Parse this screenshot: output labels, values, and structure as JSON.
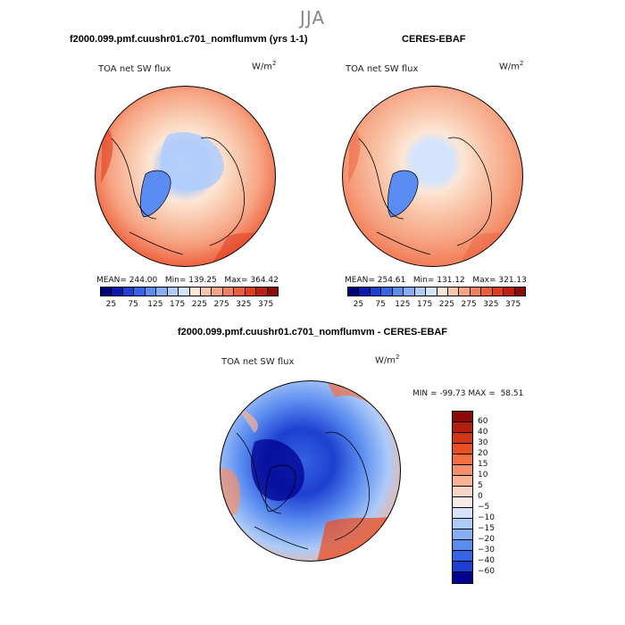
{
  "figure": {
    "season": "JJA",
    "mid_title": "f2000.099.pmf.cuushr01.c701_nomflumvm - CERES-EBAF"
  },
  "panels": [
    {
      "title": "f2000.099.pmf.cuushr01.c701_nomflumvm (yrs 1-1)",
      "variable": "TOA net SW flux",
      "units_base": "W/m",
      "units_exp": "2",
      "mean_label": "MEAN=",
      "mean": "244.00",
      "min_label": "Min=",
      "min": "139.25",
      "max_label": "Max=",
      "max": "364.42",
      "colorbar_ticks": [
        "25",
        "75",
        "125",
        "175",
        "225",
        "275",
        "325",
        "375"
      ],
      "colorbar_colors": [
        "#00007a",
        "#0a18b0",
        "#1e40d0",
        "#3464e8",
        "#5a8cf4",
        "#86aef8",
        "#b0ccfa",
        "#d4e4fc",
        "#fde6d6",
        "#f9c6aa",
        "#f6a483",
        "#f3815d",
        "#ee5e3b",
        "#e03c20",
        "#c02010",
        "#8c0a05"
      ]
    },
    {
      "title": "CERES-EBAF",
      "variable": "TOA net SW flux",
      "units_base": "W/m",
      "units_exp": "2",
      "mean_label": "MEAN=",
      "mean": "254.61",
      "min_label": "Min=",
      "min": "131.12",
      "max_label": "Max=",
      "max": "321.13",
      "colorbar_ticks": [
        "25",
        "75",
        "125",
        "175",
        "225",
        "275",
        "325",
        "375"
      ],
      "colorbar_colors": [
        "#00007a",
        "#0a18b0",
        "#1e40d0",
        "#3464e8",
        "#5a8cf4",
        "#86aef8",
        "#b0ccfa",
        "#d4e4fc",
        "#fde6d6",
        "#f9c6aa",
        "#f6a483",
        "#f3815d",
        "#ee5e3b",
        "#e03c20",
        "#c02010",
        "#8c0a05"
      ]
    },
    {
      "title": "f2000.099.pmf.cuushr01.c701_nomflumvm - CERES-EBAF",
      "variable": "TOA net SW flux",
      "units_base": "W/m",
      "units_exp": "2",
      "min_label": "MIN =",
      "min": "-99.73",
      "max_label": "MAX =",
      "max": "58.51",
      "colorbar_labels": [
        "60",
        "40",
        "30",
        "20",
        "15",
        "10",
        "5",
        "0",
        "−5",
        "−10",
        "−15",
        "−20",
        "−30",
        "−40",
        "−60"
      ],
      "colorbar_colors": [
        "#8c0a05",
        "#b41e0d",
        "#d23616",
        "#ea4f25",
        "#f46e42",
        "#f79068",
        "#f9b394",
        "#fcd6c3",
        "#f5ecea",
        "#d6e4fb",
        "#aecbf8",
        "#86aef4",
        "#5a8cf0",
        "#3464e4",
        "#1e40d0",
        "#000090"
      ]
    }
  ]
}
